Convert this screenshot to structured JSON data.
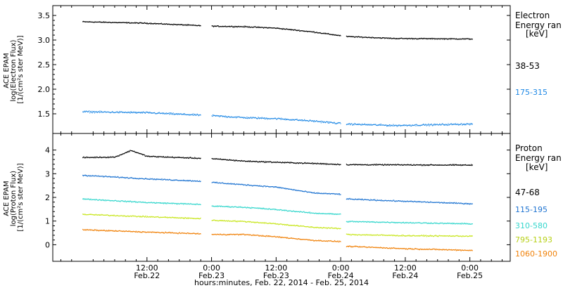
{
  "chart_data": [
    {
      "type": "scatter",
      "panel": "electron",
      "ylabel": [
        "ACE EPAM",
        "log(Electron Flux)",
        "[1/(cm²s ster MeV)]"
      ],
      "ylim": [
        1.1,
        3.7
      ],
      "yticks": [
        "1.5",
        "2.0",
        "2.5",
        "3.0",
        "3.5"
      ],
      "ytick_values": [
        1.5,
        2.0,
        2.5,
        3.0,
        3.5
      ],
      "legend_title": [
        "Electron",
        "Energy ran",
        "[keV]"
      ],
      "series": [
        {
          "name": "38-53",
          "color": "#000000",
          "values": [
            [
              0.0,
              3.38
            ],
            [
              12.0,
              3.35
            ],
            [
              18.0,
              3.32
            ],
            [
              22.0,
              3.3
            ],
            [
              24.0,
              3.29
            ],
            [
              30.0,
              3.28
            ],
            [
              36.0,
              3.25
            ],
            [
              43.0,
              3.17
            ],
            [
              49.0,
              3.08
            ],
            [
              58.0,
              3.04
            ],
            [
              72.0,
              3.03
            ]
          ]
        },
        {
          "name": "175-315",
          "color": "#1e88e5",
          "values": [
            [
              0.0,
              1.55
            ],
            [
              12.0,
              1.53
            ],
            [
              18.0,
              1.5
            ],
            [
              22.0,
              1.48
            ],
            [
              24.0,
              1.47
            ],
            [
              30.0,
              1.43
            ],
            [
              36.0,
              1.41
            ],
            [
              43.0,
              1.36
            ],
            [
              49.0,
              1.3
            ],
            [
              58.0,
              1.27
            ],
            [
              72.0,
              1.3
            ]
          ]
        }
      ]
    },
    {
      "type": "scatter",
      "panel": "proton",
      "ylabel": [
        "ACE EPAM",
        "log(Proton Flux)",
        "[1/(cm²s ster MeV)]"
      ],
      "ylim": [
        -0.7,
        4.7
      ],
      "yticks": [
        "0",
        "1",
        "2",
        "3",
        "4"
      ],
      "ytick_values": [
        0,
        1,
        2,
        3,
        4
      ],
      "legend_title": [
        "Proton",
        "Energy ran",
        "[keV]"
      ],
      "series": [
        {
          "name": "47-68",
          "color": "#000000",
          "values": [
            [
              0.0,
              3.7
            ],
            [
              6.0,
              3.72
            ],
            [
              9.0,
              4.0
            ],
            [
              12.0,
              3.75
            ],
            [
              18.0,
              3.7
            ],
            [
              24.0,
              3.65
            ],
            [
              30.0,
              3.55
            ],
            [
              36.0,
              3.5
            ],
            [
              43.0,
              3.45
            ],
            [
              49.0,
              3.4
            ],
            [
              72.0,
              3.38
            ]
          ]
        },
        {
          "name": "115-195",
          "color": "#1f74d1",
          "values": [
            [
              0.0,
              2.95
            ],
            [
              12.0,
              2.8
            ],
            [
              22.0,
              2.7
            ],
            [
              24.0,
              2.65
            ],
            [
              30.0,
              2.55
            ],
            [
              36.0,
              2.45
            ],
            [
              43.0,
              2.2
            ],
            [
              48.0,
              2.15
            ],
            [
              49.0,
              1.95
            ],
            [
              60.0,
              1.85
            ],
            [
              72.0,
              1.75
            ]
          ]
        },
        {
          "name": "310-580",
          "color": "#33d6cc",
          "values": [
            [
              0.0,
              1.95
            ],
            [
              12.0,
              1.8
            ],
            [
              22.0,
              1.72
            ],
            [
              24.0,
              1.65
            ],
            [
              30.0,
              1.6
            ],
            [
              36.0,
              1.5
            ],
            [
              43.0,
              1.35
            ],
            [
              48.0,
              1.3
            ],
            [
              49.0,
              1.0
            ],
            [
              60.0,
              0.95
            ],
            [
              72.0,
              0.9
            ]
          ]
        },
        {
          "name": "795-1193",
          "color": "#c8e61e",
          "values": [
            [
              0.0,
              1.3
            ],
            [
              12.0,
              1.2
            ],
            [
              22.0,
              1.12
            ],
            [
              24.0,
              1.05
            ],
            [
              30.0,
              1.0
            ],
            [
              36.0,
              0.9
            ],
            [
              43.0,
              0.75
            ],
            [
              48.0,
              0.7
            ],
            [
              49.0,
              0.45
            ],
            [
              60.0,
              0.4
            ],
            [
              72.0,
              0.38
            ]
          ]
        },
        {
          "name": "1060-1900",
          "color": "#f0820a",
          "values": [
            [
              0.0,
              0.65
            ],
            [
              12.0,
              0.55
            ],
            [
              22.0,
              0.48
            ],
            [
              24.0,
              0.45
            ],
            [
              30.0,
              0.45
            ],
            [
              36.0,
              0.35
            ],
            [
              43.0,
              0.2
            ],
            [
              48.0,
              0.15
            ],
            [
              49.0,
              -0.05
            ],
            [
              60.0,
              -0.15
            ],
            [
              72.0,
              -0.22
            ]
          ]
        }
      ]
    }
  ],
  "xaxis": {
    "xlim_hours": [
      -5.5,
      79.5
    ],
    "gaps_hours": [
      [
        22.0,
        24.0
      ],
      [
        48.0,
        49.0
      ]
    ],
    "data_end_hour": 72.5,
    "ticks": [
      {
        "hour": 12,
        "time": "12:00",
        "date": "Feb.22"
      },
      {
        "hour": 24,
        "time": "0:00",
        "date": "Feb.23"
      },
      {
        "hour": 36,
        "time": "12:00",
        "date": "Feb.23"
      },
      {
        "hour": 48,
        "time": "0:00",
        "date": "Feb.24"
      },
      {
        "hour": 60,
        "time": "12:00",
        "date": "Feb.24"
      },
      {
        "hour": 72,
        "time": "0:00",
        "date": "Feb.25"
      }
    ],
    "label": "hours:minutes, Feb. 22, 2014 - Feb. 25, 2014"
  }
}
